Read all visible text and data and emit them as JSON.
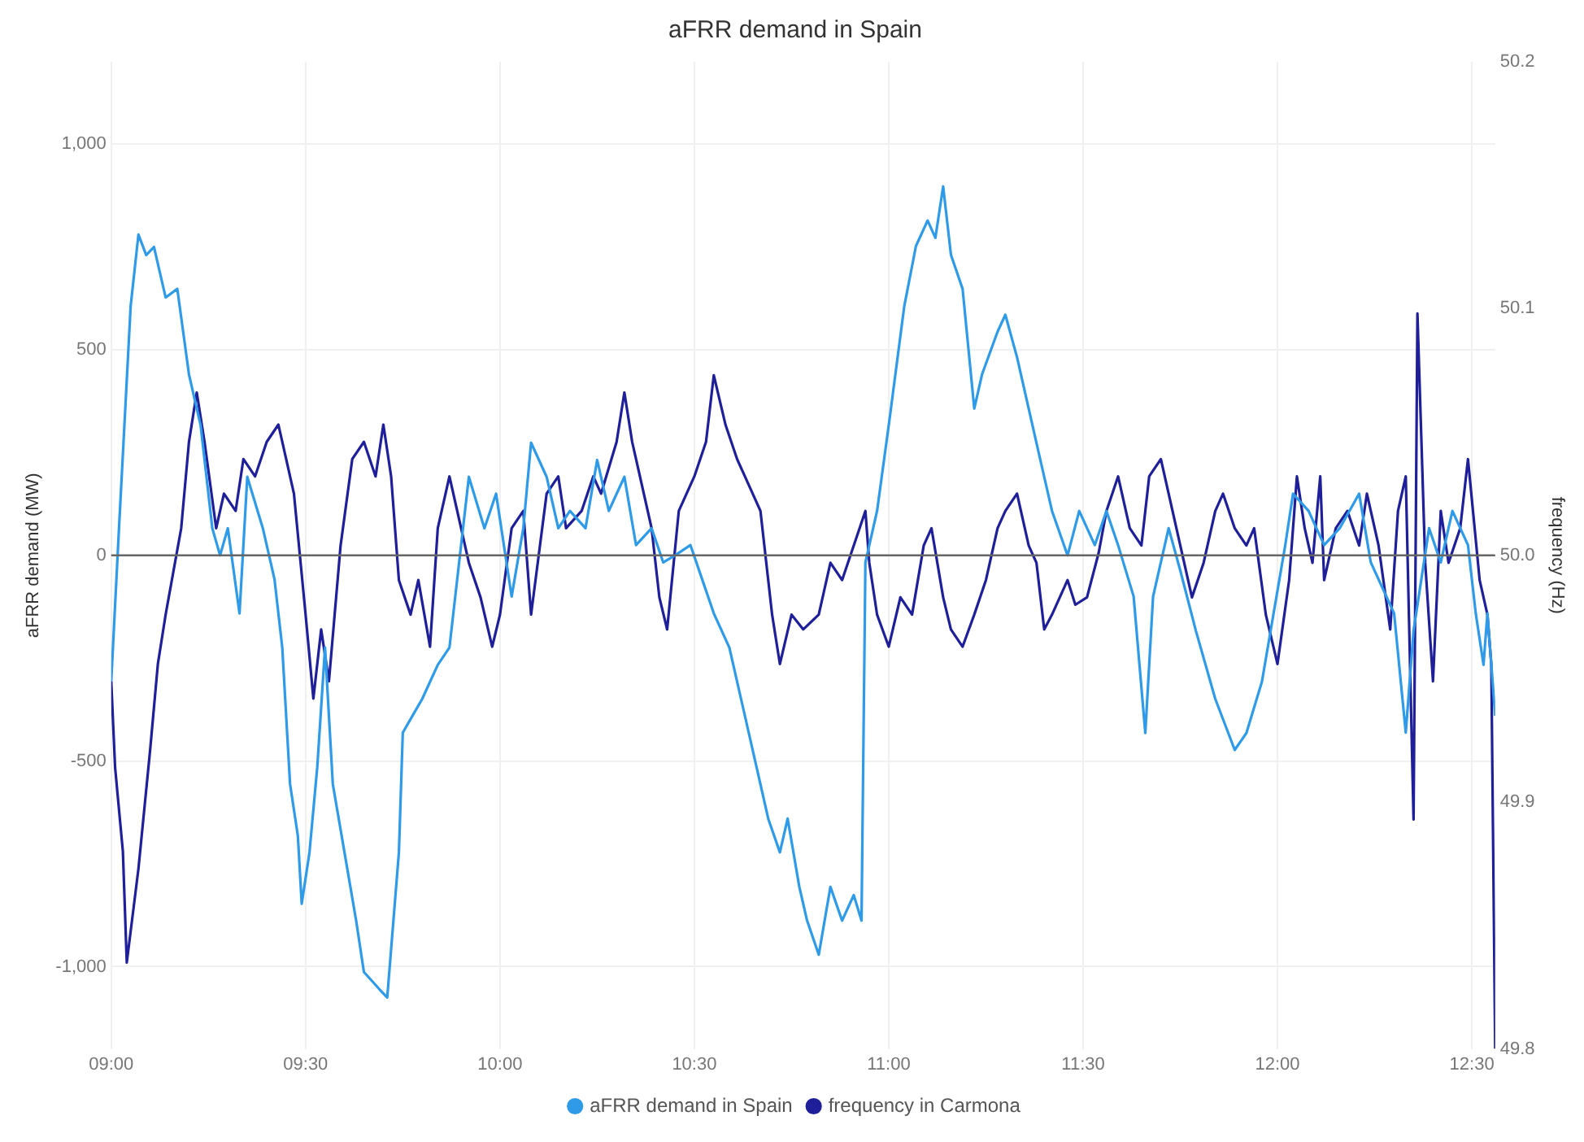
{
  "chart_data": {
    "type": "line",
    "title": "aFRR demand in Spain",
    "ylabel": "aFRR demand (MW)",
    "y2label": "frequency (Hz)",
    "xlim": [
      9,
      12.56
    ],
    "xticks": [
      {
        "value": 9,
        "label": "09:00"
      },
      {
        "value": 9.5,
        "label": "09:30"
      },
      {
        "value": 10,
        "label": "10:00"
      },
      {
        "value": 10.5,
        "label": "10:30"
      },
      {
        "value": 11,
        "label": "11:00"
      },
      {
        "value": 11.5,
        "label": "11:30"
      },
      {
        "value": 12,
        "label": "12:00"
      },
      {
        "value": 12.5,
        "label": "12:30"
      }
    ],
    "ylim": [
      -1200,
      1200
    ],
    "yticks": [
      {
        "value": -1000,
        "label": "-1,000"
      },
      -500,
      0,
      500,
      {
        "value": 1000,
        "label": "1,000"
      }
    ],
    "y2lim": [
      49.8,
      50.2
    ],
    "y2ticks": [
      49.8,
      49.9,
      {
        "value": 50,
        "label": "50.0"
      },
      50.1,
      50.2
    ],
    "grid": true,
    "legend": "bottom",
    "marker": "none",
    "line_style": "solid",
    "ref_lines": [
      {
        "axis": "y",
        "value": 0,
        "color": "#666666"
      }
    ],
    "series": [
      {
        "name": "aFRR demand in Spain",
        "color": "#2f9be8",
        "x": [
          9.0,
          9.02,
          9.05,
          9.07,
          9.09,
          9.11,
          9.14,
          9.17,
          9.2,
          9.23,
          9.26,
          9.28,
          9.3,
          9.33,
          9.35,
          9.39,
          9.42,
          9.44,
          9.46,
          9.48,
          9.49,
          9.51,
          9.53,
          9.55,
          9.57,
          9.6,
          9.63,
          9.65,
          9.69,
          9.71,
          9.74,
          9.75,
          9.8,
          9.84,
          9.87,
          9.89,
          9.92,
          9.96,
          9.99,
          10.03,
          10.06,
          10.08,
          10.12,
          10.15,
          10.18,
          10.22,
          10.25,
          10.28,
          10.32,
          10.35,
          10.39,
          10.42,
          10.45,
          10.49,
          10.52,
          10.55,
          10.59,
          10.63,
          10.66,
          10.69,
          10.72,
          10.74,
          10.77,
          10.79,
          10.82,
          10.85,
          10.88,
          10.91,
          10.93,
          10.94,
          10.97,
          11.0,
          11.04,
          11.07,
          11.1,
          11.12,
          11.14,
          11.16,
          11.19,
          11.22,
          11.24,
          11.28,
          11.3,
          11.33,
          11.36,
          11.39,
          11.42,
          11.46,
          11.49,
          11.53,
          11.56,
          11.59,
          11.63,
          11.66,
          11.68,
          11.72,
          11.75,
          11.79,
          11.84,
          11.89,
          11.92,
          11.96,
          11.99,
          12.02,
          12.04,
          12.08,
          12.12,
          12.16,
          12.21,
          12.24,
          12.3,
          12.33,
          12.35,
          12.39,
          12.42,
          12.45,
          12.49,
          12.51,
          12.53,
          12.54,
          12.56
        ],
        "values": [
          -307,
          66,
          606,
          780,
          730,
          750,
          627,
          648,
          440,
          316,
          66,
          0,
          66,
          -141,
          191,
          66,
          -58,
          -224,
          -556,
          -681,
          -847,
          -722,
          -515,
          -224,
          -556,
          -722,
          -888,
          -1013,
          -1055,
          -1075,
          -722,
          -431,
          -349,
          -266,
          -224,
          -58,
          191,
          66,
          150,
          -100,
          66,
          274,
          191,
          66,
          108,
          66,
          232,
          108,
          191,
          25,
          66,
          -17,
          0,
          25,
          -58,
          -141,
          -224,
          -390,
          -515,
          -640,
          -722,
          -640,
          -806,
          -888,
          -971,
          -806,
          -888,
          -826,
          -888,
          -17,
          108,
          316,
          606,
          752,
          814,
          772,
          897,
          731,
          648,
          357,
          440,
          544,
          585,
          482,
          357,
          232,
          108,
          0,
          108,
          25,
          108,
          25,
          -100,
          -432,
          -100,
          66,
          -37,
          -183,
          -349,
          -473,
          -432,
          -307,
          -141,
          25,
          150,
          108,
          25,
          66,
          150,
          -17,
          -141,
          -431,
          -183,
          66,
          -17,
          108,
          25,
          -141,
          -266,
          -141,
          -390
        ]
      },
      {
        "name": "frequency in Carmona",
        "color": "#1f1f9a",
        "axis": "y2",
        "x": [
          9.0,
          9.01,
          9.03,
          9.04,
          9.07,
          9.1,
          9.12,
          9.14,
          9.18,
          9.2,
          9.22,
          9.24,
          9.27,
          9.29,
          9.32,
          9.34,
          9.37,
          9.4,
          9.43,
          9.45,
          9.47,
          9.5,
          9.52,
          9.54,
          9.56,
          9.59,
          9.62,
          9.65,
          9.68,
          9.7,
          9.72,
          9.74,
          9.77,
          9.79,
          9.82,
          9.84,
          9.87,
          9.9,
          9.92,
          9.95,
          9.98,
          10.0,
          10.03,
          10.06,
          10.08,
          10.12,
          10.15,
          10.17,
          10.21,
          10.24,
          10.26,
          10.3,
          10.32,
          10.34,
          10.36,
          10.39,
          10.41,
          10.43,
          10.46,
          10.5,
          10.53,
          10.55,
          10.58,
          10.61,
          10.63,
          10.67,
          10.7,
          10.72,
          10.75,
          10.78,
          10.82,
          10.85,
          10.88,
          10.91,
          10.94,
          10.95,
          10.97,
          11.0,
          11.03,
          11.06,
          11.09,
          11.11,
          11.14,
          11.16,
          11.19,
          11.22,
          11.25,
          11.28,
          11.3,
          11.33,
          11.36,
          11.38,
          11.4,
          11.42,
          11.46,
          11.48,
          11.51,
          11.54,
          11.56,
          11.59,
          11.62,
          11.65,
          11.67,
          11.7,
          11.73,
          11.75,
          11.78,
          11.81,
          11.84,
          11.86,
          11.89,
          11.92,
          11.94,
          11.97,
          12.0,
          12.03,
          12.05,
          12.07,
          12.09,
          12.11,
          12.12,
          12.15,
          12.18,
          12.21,
          12.23,
          12.26,
          12.29,
          12.31,
          12.33,
          12.35,
          12.36,
          12.38,
          12.4,
          12.42,
          12.44,
          12.47,
          12.49,
          12.52,
          12.54,
          12.55,
          12.56
        ],
        "values": [
          49.949,
          49.914,
          49.88,
          49.835,
          49.873,
          49.921,
          49.956,
          49.976,
          50.011,
          50.046,
          50.066,
          50.046,
          50.011,
          50.025,
          50.018,
          50.039,
          50.032,
          50.046,
          50.053,
          50.039,
          50.025,
          49.976,
          49.942,
          49.97,
          49.949,
          50.004,
          50.039,
          50.046,
          50.032,
          50.053,
          50.032,
          49.99,
          49.976,
          49.99,
          49.963,
          50.011,
          50.032,
          50.011,
          49.997,
          49.983,
          49.963,
          49.976,
          50.011,
          50.018,
          49.976,
          50.025,
          50.032,
          50.011,
          50.018,
          50.032,
          50.025,
          50.046,
          50.066,
          50.046,
          50.032,
          50.011,
          49.983,
          49.97,
          50.018,
          50.032,
          50.046,
          50.073,
          50.053,
          50.039,
          50.032,
          50.018,
          49.976,
          49.956,
          49.976,
          49.97,
          49.976,
          49.997,
          49.99,
          50.004,
          50.018,
          49.997,
          49.976,
          49.963,
          49.983,
          49.976,
          50.004,
          50.011,
          49.983,
          49.97,
          49.963,
          49.976,
          49.99,
          50.011,
          50.018,
          50.025,
          50.004,
          49.997,
          49.97,
          49.976,
          49.99,
          49.98,
          49.983,
          50.001,
          50.018,
          50.032,
          50.011,
          50.004,
          50.032,
          50.039,
          50.018,
          50.004,
          49.983,
          49.997,
          50.018,
          50.025,
          50.011,
          50.004,
          50.011,
          49.976,
          49.956,
          49.99,
          50.032,
          50.011,
          49.997,
          50.032,
          49.99,
          50.011,
          50.018,
          50.004,
          50.025,
          50.004,
          49.97,
          50.018,
          50.032,
          49.893,
          50.098,
          49.997,
          49.949,
          50.018,
          49.997,
          50.011,
          50.039,
          49.99,
          49.976,
          49.956,
          49.8
        ]
      }
    ]
  }
}
